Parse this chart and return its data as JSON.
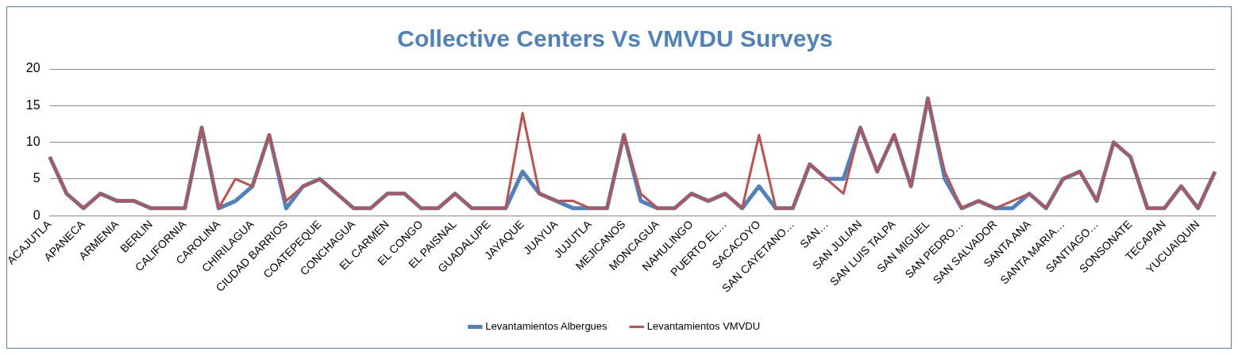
{
  "chart_data": {
    "type": "line",
    "title": "Collective Centers Vs VMVDU Surveys",
    "categories": [
      "ACAJUTLA",
      null,
      "APANECA",
      null,
      "ARMENIA",
      null,
      "BERLIN",
      null,
      "CALIFORNIA",
      null,
      "CAROLINA",
      null,
      "CHIRILAGUA",
      null,
      "CIUDAD BARRIOS",
      null,
      "COATEPEQUE",
      null,
      "CONCHAGUA",
      null,
      "EL CARMEN",
      null,
      "EL CONGO",
      null,
      "EL PAISNAL",
      null,
      "GUADALUPE",
      null,
      "JAYAQUE",
      null,
      "JUAYUA",
      null,
      "JUJUTLA",
      null,
      "MEJICANOS",
      null,
      "MONCAGUA",
      null,
      "NAHULINGO",
      null,
      "PUERTO EL…",
      null,
      "SACACOYO",
      null,
      "SAN CAYETANO…",
      null,
      "SAN…",
      null,
      "SAN JULIAN",
      null,
      "SAN LUIS TALPA",
      null,
      "SAN MIGUEL",
      null,
      "SAN PEDRO…",
      null,
      "SAN SALVADOR",
      null,
      "SANTA ANA",
      null,
      "SANTA MARIA…",
      null,
      "SANTIAGO…",
      null,
      "SONSONATE",
      null,
      "TECAPAN",
      null,
      "YUCUAIQUIN",
      null
    ],
    "series": [
      {
        "name": "Levantamientos Albergues",
        "color": "#4f81bd",
        "values": [
          8,
          3,
          1,
          3,
          2,
          2,
          1,
          1,
          1,
          12,
          1,
          2,
          4,
          11,
          1,
          4,
          5,
          3,
          1,
          1,
          3,
          3,
          1,
          1,
          3,
          1,
          1,
          1,
          6,
          3,
          2,
          1,
          1,
          1,
          11,
          2,
          1,
          1,
          3,
          2,
          3,
          1,
          4,
          1,
          1,
          7,
          5,
          5,
          12,
          6,
          11,
          4,
          16,
          5,
          1,
          2,
          1,
          1,
          3,
          1,
          5,
          6,
          2,
          10,
          8,
          1,
          1,
          4,
          1,
          6
        ]
      },
      {
        "name": "Levantamientos VMVDU",
        "color": "#c0504d",
        "values": [
          8,
          3,
          1,
          3,
          2,
          2,
          1,
          1,
          1,
          12,
          1,
          5,
          4,
          11,
          2,
          4,
          5,
          3,
          1,
          1,
          3,
          3,
          1,
          1,
          3,
          1,
          1,
          1,
          14,
          3,
          2,
          2,
          1,
          1,
          11,
          3,
          1,
          1,
          3,
          2,
          3,
          1,
          11,
          1,
          1,
          7,
          5,
          3,
          12,
          6,
          11,
          4,
          16,
          6,
          1,
          2,
          1,
          2,
          3,
          1,
          5,
          6,
          2,
          10,
          8,
          1,
          1,
          4,
          1,
          6
        ]
      }
    ],
    "ylim": [
      0,
      20
    ],
    "yticks": [
      0,
      5,
      10,
      15,
      20
    ],
    "grid": "y",
    "legend": "bottom",
    "marker": "none",
    "line_style": "solid"
  }
}
